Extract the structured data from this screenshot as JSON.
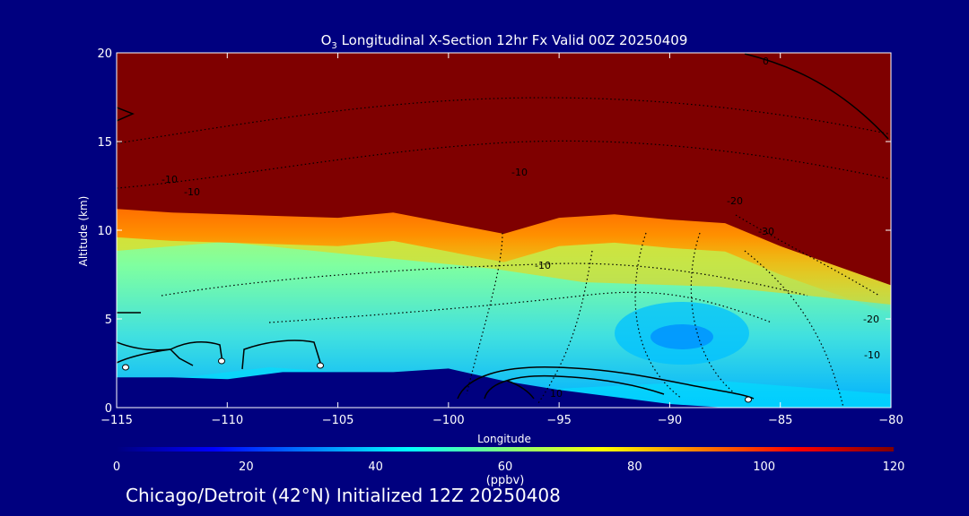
{
  "chart_data": {
    "type": "heatmap",
    "title_prefix": "O",
    "title_subscript": "3",
    "title_rest": " Longitudinal X-Section 12hr  Fx Valid 00Z 20250409",
    "xlabel": "Longitude",
    "ylabel": "Altitude (km)",
    "xlim": [
      -115,
      -80
    ],
    "ylim": [
      0,
      20
    ],
    "xticks": [
      "-115",
      "-110",
      "-105",
      "-100",
      "-95",
      "-90",
      "-85",
      "-80"
    ],
    "xtick_values": [
      -115,
      -110,
      -105,
      -100,
      -95,
      -90,
      -85,
      -80
    ],
    "yticks": [
      "0",
      "5",
      "10",
      "15",
      "20"
    ],
    "ytick_values": [
      0,
      5,
      10,
      15,
      20
    ],
    "colorbar": {
      "min": 0,
      "max": 120,
      "ticks": [
        "0",
        "20",
        "40",
        "60",
        "80",
        "100",
        "120"
      ],
      "tick_values": [
        0,
        20,
        40,
        60,
        80,
        100,
        120
      ],
      "units": "(ppbv)"
    },
    "series": [
      {
        "values_desc": "ozone ppbv",
        "x": [
          -115,
          -110,
          -105,
          -100,
          -95,
          -90,
          -85,
          -80
        ]
      },
      {
        "tropopause_height_km": [
          10.8,
          10.6,
          10.5,
          10.4,
          10.3,
          10.6,
          10.0,
          9.4,
          10.3,
          10.5,
          10.2,
          10.0,
          8.7,
          7.6,
          6.5
        ]
      },
      {
        "terrain_height_km": [
          1.7,
          1.7,
          1.6,
          2.0,
          2.0,
          2.0,
          2.2,
          1.5,
          1.0,
          0.6,
          0.2,
          0.0,
          0.0,
          0.0,
          0.0
        ]
      }
    ],
    "contour_labels": [
      "-10",
      "-10",
      "-10",
      "-20",
      "-30",
      "-10",
      "-20",
      "-10",
      "10",
      "0"
    ],
    "palette": [
      "#00007f",
      "#0000ff",
      "#007fff",
      "#00ffff",
      "#7fff7f",
      "#ffff00",
      "#ff7f00",
      "#ff0000",
      "#7f0000"
    ]
  },
  "footer_text": "Chicago/Detroit (42°N) Initialized 12Z 20250408"
}
